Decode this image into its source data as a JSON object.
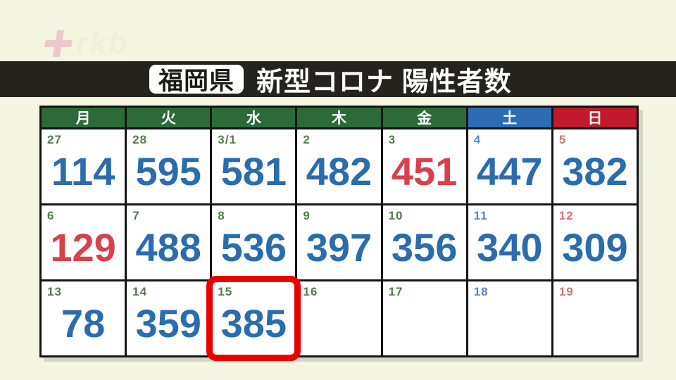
{
  "watermark": {
    "logo_text": "rkb",
    "plus_color": "#eab4c1"
  },
  "header": {
    "badge": "福岡県",
    "title": "新型コロナ 陽性者数",
    "bar_color": "#24231e"
  },
  "colors": {
    "background": "#f3f5e1",
    "grid_line": "#141414",
    "header_green": "#2c6b38",
    "header_blue": "#2b6cb4",
    "header_red": "#c01a2c",
    "date_weekday": "#557a50",
    "date_saturday": "#5787b8",
    "date_sunday": "#d0707a",
    "value_blue": "#2a6cae",
    "value_red": "#d8414b",
    "highlight_red": "#ea0000"
  },
  "calendar": {
    "day_headers": [
      {
        "label": "月",
        "bg": "#2c6b38"
      },
      {
        "label": "火",
        "bg": "#2c6b38"
      },
      {
        "label": "水",
        "bg": "#2c6b38"
      },
      {
        "label": "木",
        "bg": "#2c6b38"
      },
      {
        "label": "金",
        "bg": "#2c6b38"
      },
      {
        "label": "土",
        "bg": "#2b6cb4"
      },
      {
        "label": "日",
        "bg": "#c01a2c"
      }
    ],
    "weeks": [
      [
        {
          "date": "27",
          "value": "114",
          "value_color": "blue",
          "highlight": false
        },
        {
          "date": "28",
          "value": "595",
          "value_color": "blue",
          "highlight": false
        },
        {
          "date": "3/1",
          "value": "581",
          "value_color": "blue",
          "highlight": false
        },
        {
          "date": "2",
          "value": "482",
          "value_color": "blue",
          "highlight": false
        },
        {
          "date": "3",
          "value": "451",
          "value_color": "red",
          "highlight": false
        },
        {
          "date": "4",
          "value": "447",
          "value_color": "blue",
          "highlight": false
        },
        {
          "date": "5",
          "value": "382",
          "value_color": "blue",
          "highlight": false
        }
      ],
      [
        {
          "date": "6",
          "value": "129",
          "value_color": "red",
          "highlight": false
        },
        {
          "date": "7",
          "value": "488",
          "value_color": "blue",
          "highlight": false
        },
        {
          "date": "8",
          "value": "536",
          "value_color": "blue",
          "highlight": false
        },
        {
          "date": "9",
          "value": "397",
          "value_color": "blue",
          "highlight": false
        },
        {
          "date": "10",
          "value": "356",
          "value_color": "blue",
          "highlight": false
        },
        {
          "date": "11",
          "value": "340",
          "value_color": "blue",
          "highlight": false
        },
        {
          "date": "12",
          "value": "309",
          "value_color": "blue",
          "highlight": false
        }
      ],
      [
        {
          "date": "13",
          "value": "78",
          "value_color": "blue",
          "highlight": false
        },
        {
          "date": "14",
          "value": "359",
          "value_color": "blue",
          "highlight": false
        },
        {
          "date": "15",
          "value": "385",
          "value_color": "blue",
          "highlight": true
        },
        {
          "date": "16",
          "value": "",
          "value_color": "blue",
          "highlight": false
        },
        {
          "date": "17",
          "value": "",
          "value_color": "blue",
          "highlight": false
        },
        {
          "date": "18",
          "value": "",
          "value_color": "blue",
          "highlight": false
        },
        {
          "date": "19",
          "value": "",
          "value_color": "blue",
          "highlight": false
        }
      ]
    ]
  }
}
